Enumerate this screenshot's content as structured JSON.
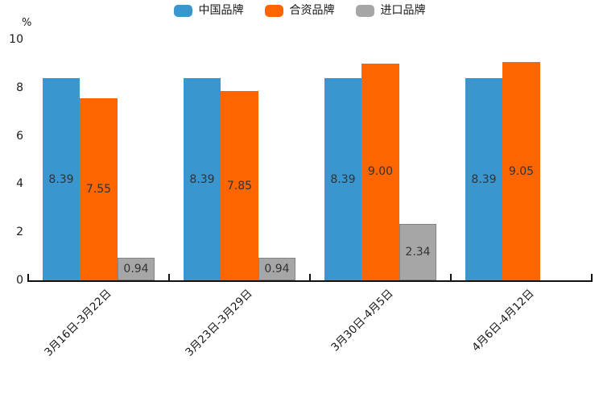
{
  "chart_data": {
    "type": "bar",
    "title": "",
    "unit_label": "%",
    "categories": [
      "3月16日-3月22日",
      "3月23日-3月29日",
      "3月30日-4月5日",
      "4月6日-4月12日"
    ],
    "series": [
      {
        "name": "中国品牌",
        "color": "#3996cf",
        "values": [
          8.39,
          8.39,
          8.39,
          8.39
        ]
      },
      {
        "name": "合资品牌",
        "color": "#fd6500",
        "values": [
          7.55,
          7.85,
          9.0,
          9.05
        ]
      },
      {
        "name": "进口品牌",
        "color": "#a6a6a6",
        "border_color": "#848484",
        "values": [
          0.94,
          0.94,
          2.34,
          null
        ]
      }
    ],
    "value_labels": [
      [
        "8.39",
        "7.55",
        "0.94"
      ],
      [
        "8.39",
        "7.85",
        "0.94"
      ],
      [
        "8.39",
        "9.00",
        "2.34"
      ],
      [
        "8.39",
        "9.05",
        null
      ]
    ],
    "ylim": [
      0,
      10
    ],
    "yticks": [
      0,
      2,
      4,
      6,
      8,
      10
    ],
    "legend_position": "top",
    "grid": false,
    "bar_label_position": "center"
  }
}
